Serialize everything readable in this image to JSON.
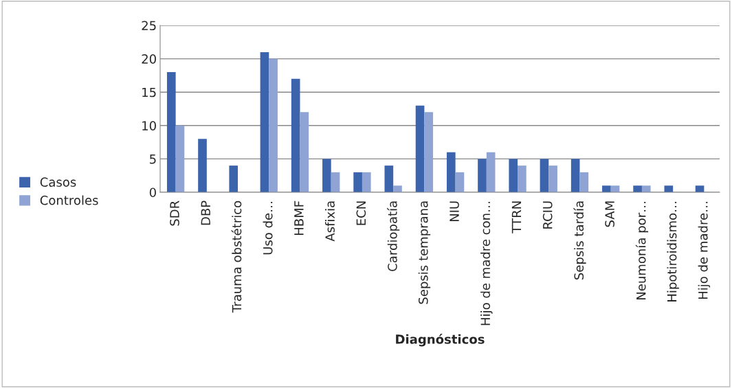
{
  "chart_data": {
    "type": "bar",
    "xlabel": "Diagnósticos",
    "categories": [
      "SDR",
      "DBP",
      "Trauma obstétrico",
      "Uso de…",
      "HBMF",
      "Asfixia",
      "ECN",
      "Cardiopatía",
      "Sepsis temprana",
      "NIU",
      "Hijo de madre con…",
      "TTRN",
      "RCIU",
      "Sepsis tardía",
      "SAM",
      "Neumonía por…",
      "Hipotiroidismo…",
      "Hijo de madre…"
    ],
    "series": [
      {
        "name": "Casos",
        "color": "#3c64ad",
        "values": [
          18,
          8,
          4,
          21,
          17,
          5,
          3,
          4,
          13,
          6,
          5,
          5,
          5,
          5,
          1,
          1,
          1,
          1
        ]
      },
      {
        "name": "Controles",
        "color": "#8fa4d5",
        "values": [
          10,
          null,
          null,
          20,
          12,
          3,
          3,
          1,
          12,
          3,
          6,
          4,
          4,
          3,
          1,
          1,
          null,
          null
        ]
      }
    ],
    "ylim": [
      0,
      25
    ],
    "yticks": [
      0,
      5,
      10,
      15,
      20,
      25
    ],
    "grid": "y",
    "legend": "left"
  }
}
